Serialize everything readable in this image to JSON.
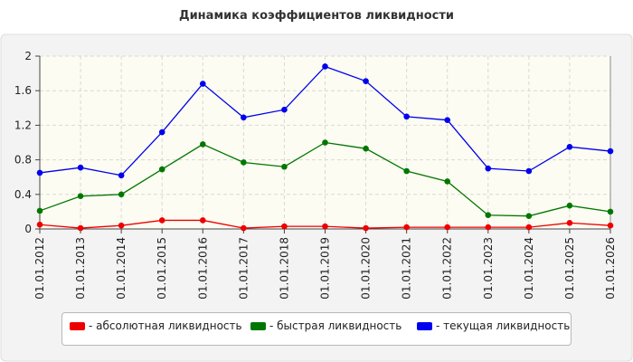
{
  "chart_data": {
    "type": "line",
    "title": "Динамика коэффициентов ликвидности",
    "x": [
      "01.01.2012",
      "01.01.2013",
      "01.01.2014",
      "01.01.2015",
      "01.01.2016",
      "01.01.2017",
      "01.01.2018",
      "01.01.2019",
      "01.01.2020",
      "01.01.2021",
      "01.01.2022",
      "01.01.2023",
      "01.01.2024",
      "01.01.2025",
      "01.01.2026"
    ],
    "ylim": [
      0,
      2
    ],
    "yticks": [
      "0",
      "0.4",
      "0.8",
      "1.2",
      "1.6",
      "2"
    ],
    "grid": true,
    "legend_position": "bottom",
    "series": [
      {
        "name": "- абсолютная ликвидность",
        "color": "#ee0000",
        "values": [
          0.05,
          0.01,
          0.04,
          0.1,
          0.1,
          0.01,
          0.03,
          0.03,
          0.01,
          0.02,
          0.02,
          0.02,
          0.02,
          0.07,
          0.04
        ]
      },
      {
        "name": "- быстрая ликвидность",
        "color": "#007700",
        "values": [
          0.21,
          0.38,
          0.4,
          0.69,
          0.98,
          0.77,
          0.72,
          1.0,
          0.93,
          0.67,
          0.55,
          0.16,
          0.15,
          0.27,
          0.2
        ]
      },
      {
        "name": "- текущая ликвидность",
        "color": "#0000ee",
        "values": [
          0.65,
          0.71,
          0.62,
          1.12,
          1.68,
          1.29,
          1.38,
          1.88,
          1.71,
          1.3,
          1.26,
          0.7,
          0.67,
          0.95,
          0.9
        ]
      }
    ]
  }
}
